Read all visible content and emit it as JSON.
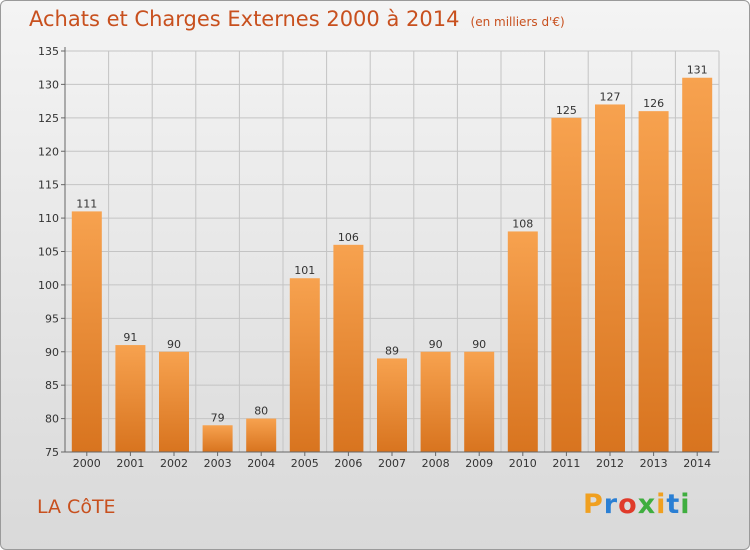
{
  "header": {
    "title": "Achats et Charges Externes 2000 à 2014",
    "unit": "(en milliers d'€)"
  },
  "footer": {
    "city": "LA CôTE",
    "logo": {
      "letters": [
        "P",
        "r",
        "o",
        "x",
        "i",
        "t",
        "i"
      ],
      "colors": [
        "#f0a020",
        "#2a7fd4",
        "#e03a2a",
        "#3fae3f",
        "#f0a020",
        "#2a7fd4",
        "#3fae3f"
      ]
    }
  },
  "chart_data": {
    "type": "bar",
    "categories": [
      "2000",
      "2001",
      "2002",
      "2003",
      "2004",
      "2005",
      "2006",
      "2007",
      "2008",
      "2009",
      "2010",
      "2011",
      "2012",
      "2013",
      "2014"
    ],
    "values": [
      111,
      91,
      90,
      79,
      80,
      101,
      106,
      89,
      90,
      90,
      108,
      125,
      127,
      126,
      131
    ],
    "ylim": [
      75,
      135
    ],
    "yticks": [
      75,
      80,
      85,
      90,
      95,
      100,
      105,
      110,
      115,
      120,
      125,
      130,
      135
    ],
    "title": "Achats et Charges Externes 2000 à 2014",
    "xlabel": "",
    "ylabel": "",
    "grid": true,
    "colors": {
      "bar_top": "#f7a24f",
      "bar_bottom": "#d8741f",
      "grid": "#c4c4c4",
      "axis": "#666666",
      "title": "#c8501e"
    }
  }
}
